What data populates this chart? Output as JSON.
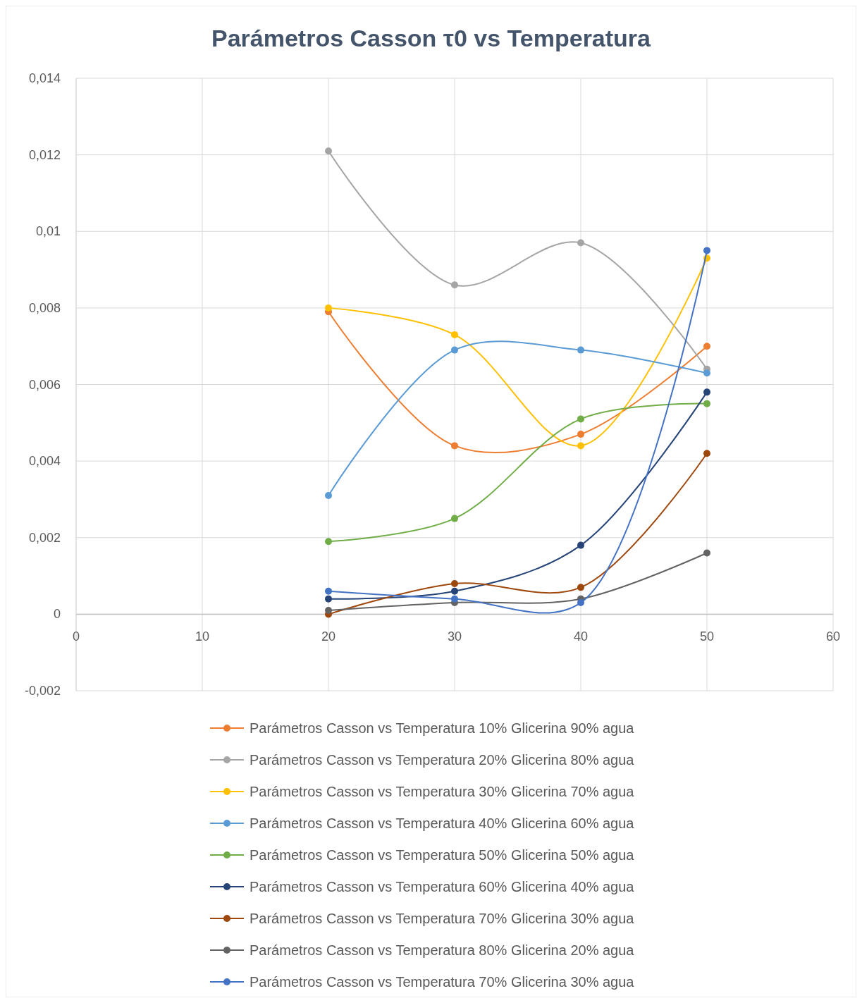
{
  "chart_data": {
    "type": "line",
    "title": "Parámetros Casson τ0  vs Temperatura",
    "x": [
      20,
      30,
      40,
      50
    ],
    "xlim": [
      0,
      60
    ],
    "xticks": [
      0,
      10,
      20,
      30,
      40,
      50,
      60
    ],
    "ylim": [
      -0.002,
      0.014
    ],
    "yticks": [
      {
        "value": -0.002,
        "label": "-0,002"
      },
      {
        "value": 0,
        "label": "0"
      },
      {
        "value": 0.002,
        "label": "0,002"
      },
      {
        "value": 0.004,
        "label": "0,004"
      },
      {
        "value": 0.006,
        "label": "0,006"
      },
      {
        "value": 0.008,
        "label": "0,008"
      },
      {
        "value": 0.01,
        "label": "0,01"
      },
      {
        "value": 0.012,
        "label": "0,012"
      },
      {
        "value": 0.014,
        "label": "0,014"
      }
    ],
    "grid": true,
    "legend": "bottom",
    "marker": "circle",
    "line_style": "solid",
    "series": [
      {
        "name": "Parámetros Casson vs Temperatura 10% Glicerina 90% agua",
        "color": "#ed7d31",
        "values": [
          0.0079,
          0.0044,
          0.0047,
          0.007
        ]
      },
      {
        "name": "Parámetros Casson vs Temperatura 20% Glicerina 80% agua",
        "color": "#a5a5a5",
        "values": [
          0.0121,
          0.0086,
          0.0097,
          0.0064
        ]
      },
      {
        "name": "Parámetros Casson vs Temperatura 30% Glicerina 70% agua",
        "color": "#ffc000",
        "values": [
          0.008,
          0.0073,
          0.0044,
          0.0093
        ]
      },
      {
        "name": "Parámetros Casson vs Temperatura 40% Glicerina 60% agua",
        "color": "#5b9bd5",
        "values": [
          0.0031,
          0.0069,
          0.0069,
          0.0063
        ]
      },
      {
        "name": "Parámetros Casson vs Temperatura 50% Glicerina 50% agua",
        "color": "#70ad47",
        "values": [
          0.0019,
          0.0025,
          0.0051,
          0.0055
        ]
      },
      {
        "name": "Parámetros Casson vs Temperatura 60% Glicerina 40% agua",
        "color": "#264478",
        "values": [
          0.0004,
          0.0006,
          0.0018,
          0.0058
        ]
      },
      {
        "name": "Parámetros Casson vs Temperatura 70% Glicerina 30% agua",
        "color": "#9e480e",
        "values": [
          0.0,
          0.0008,
          0.0007,
          0.0042
        ]
      },
      {
        "name": "Parámetros Casson vs Temperatura 80% Glicerina 20% agua",
        "color": "#636363",
        "values": [
          0.0001,
          0.0003,
          0.0004,
          0.0016
        ]
      },
      {
        "name": "Parámetros Casson vs Temperatura 70% Glicerina 30% agua",
        "color": "#4472c4",
        "values": [
          0.0006,
          0.0004,
          0.0003,
          0.0095
        ]
      }
    ]
  }
}
